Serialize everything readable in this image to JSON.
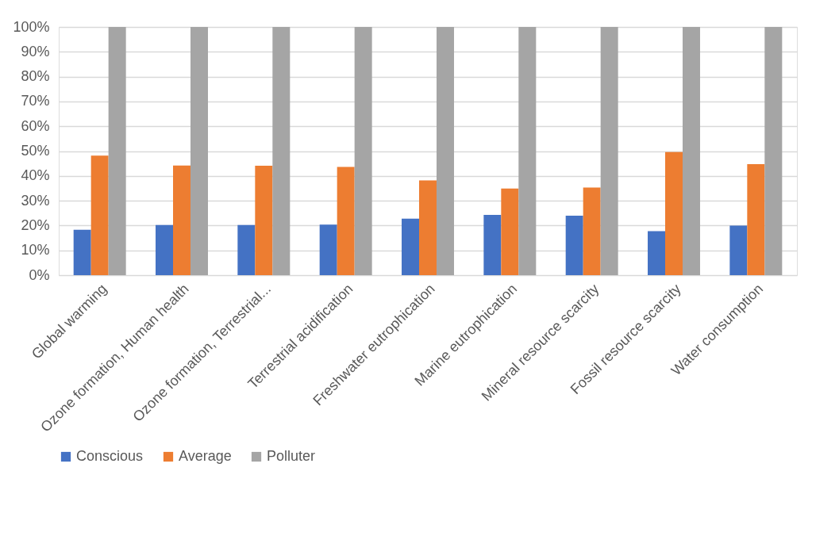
{
  "chart_data": {
    "type": "bar",
    "categories": [
      "Global warming",
      "Ozone formation, Human health",
      "Ozone formation, Terrestrial...",
      "Terrestrial acidification",
      "Freshwater eutrophication",
      "Marine eutrophication",
      "Mineral resource scarcity",
      "Fossil resource scarcity",
      "Water consumption"
    ],
    "series": [
      {
        "name": "Conscious",
        "color": "#4472c4",
        "values": [
          18.3,
          20.2,
          20.2,
          20.4,
          22.8,
          24.3,
          24.0,
          17.7,
          20.0
        ]
      },
      {
        "name": "Average",
        "color": "#ed7d31",
        "values": [
          48.2,
          44.2,
          44.1,
          43.6,
          38.2,
          34.9,
          35.3,
          49.6,
          44.7
        ]
      },
      {
        "name": "Polluter",
        "color": "#a5a5a5",
        "values": [
          100,
          100,
          100,
          100,
          100,
          100,
          100,
          100,
          100
        ]
      }
    ],
    "ylim": [
      0,
      100
    ],
    "yticks": [
      {
        "value": 0,
        "label": "0%"
      },
      {
        "value": 10,
        "label": "10%"
      },
      {
        "value": 20,
        "label": "20%"
      },
      {
        "value": 30,
        "label": "30%"
      },
      {
        "value": 40,
        "label": "40%"
      },
      {
        "value": 50,
        "label": "50%"
      },
      {
        "value": 60,
        "label": "60%"
      },
      {
        "value": 70,
        "label": "70%"
      },
      {
        "value": 80,
        "label": "80%"
      },
      {
        "value": 90,
        "label": "90%"
      },
      {
        "value": 100,
        "label": "100%"
      }
    ],
    "grid": "y",
    "legend": "bottom"
  }
}
